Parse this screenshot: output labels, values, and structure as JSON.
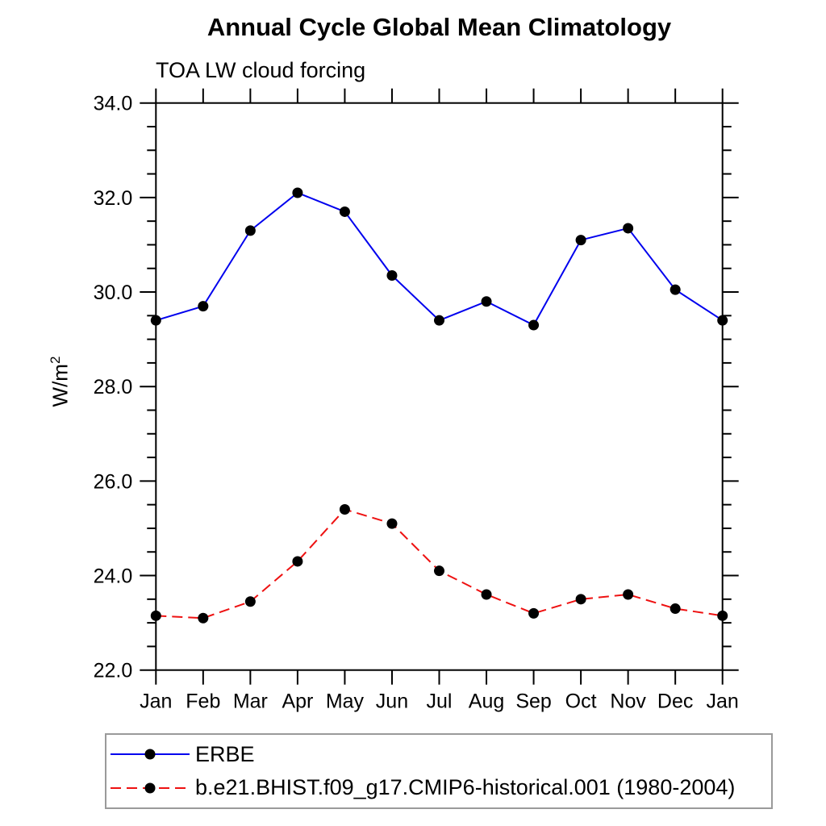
{
  "page": {
    "background": "#ffffff"
  },
  "chart_data": {
    "type": "line",
    "title": "Annual Cycle Global Mean Climatology",
    "subtitle": "TOA LW cloud forcing",
    "ylabel_base": "W/m",
    "ylabel_sup": "2",
    "categories": [
      "Jan",
      "Feb",
      "Mar",
      "Apr",
      "May",
      "Jun",
      "Jul",
      "Aug",
      "Sep",
      "Oct",
      "Nov",
      "Dec",
      "Jan"
    ],
    "ylim": [
      22,
      34
    ],
    "y_major_ticks": [
      22,
      24,
      26,
      28,
      30,
      32,
      34
    ],
    "y_major_labels": [
      "22.0",
      "24.0",
      "26.0",
      "28.0",
      "30.0",
      "32.0",
      "34.0"
    ],
    "y_minor_step": 0.5,
    "grid": false,
    "axis_color": "#000000",
    "marker_color": "#000000",
    "series": [
      {
        "name": "ERBE",
        "color": "#0000ee",
        "line_style": "solid",
        "marker": "filled-circle",
        "values": [
          29.4,
          29.7,
          31.3,
          32.1,
          31.7,
          30.35,
          29.4,
          29.8,
          29.3,
          31.1,
          31.35,
          30.05,
          29.4
        ]
      },
      {
        "name": "b.e21.BHIST.f09_g17.CMIP6-historical.001 (1980-2004)",
        "color": "#ee1111",
        "line_style": "dashed",
        "marker": "filled-circle",
        "values": [
          23.15,
          23.1,
          23.45,
          24.3,
          25.4,
          25.1,
          24.1,
          23.6,
          23.2,
          23.5,
          23.6,
          23.3,
          23.15
        ]
      }
    ],
    "legend_position": "bottom-left"
  }
}
